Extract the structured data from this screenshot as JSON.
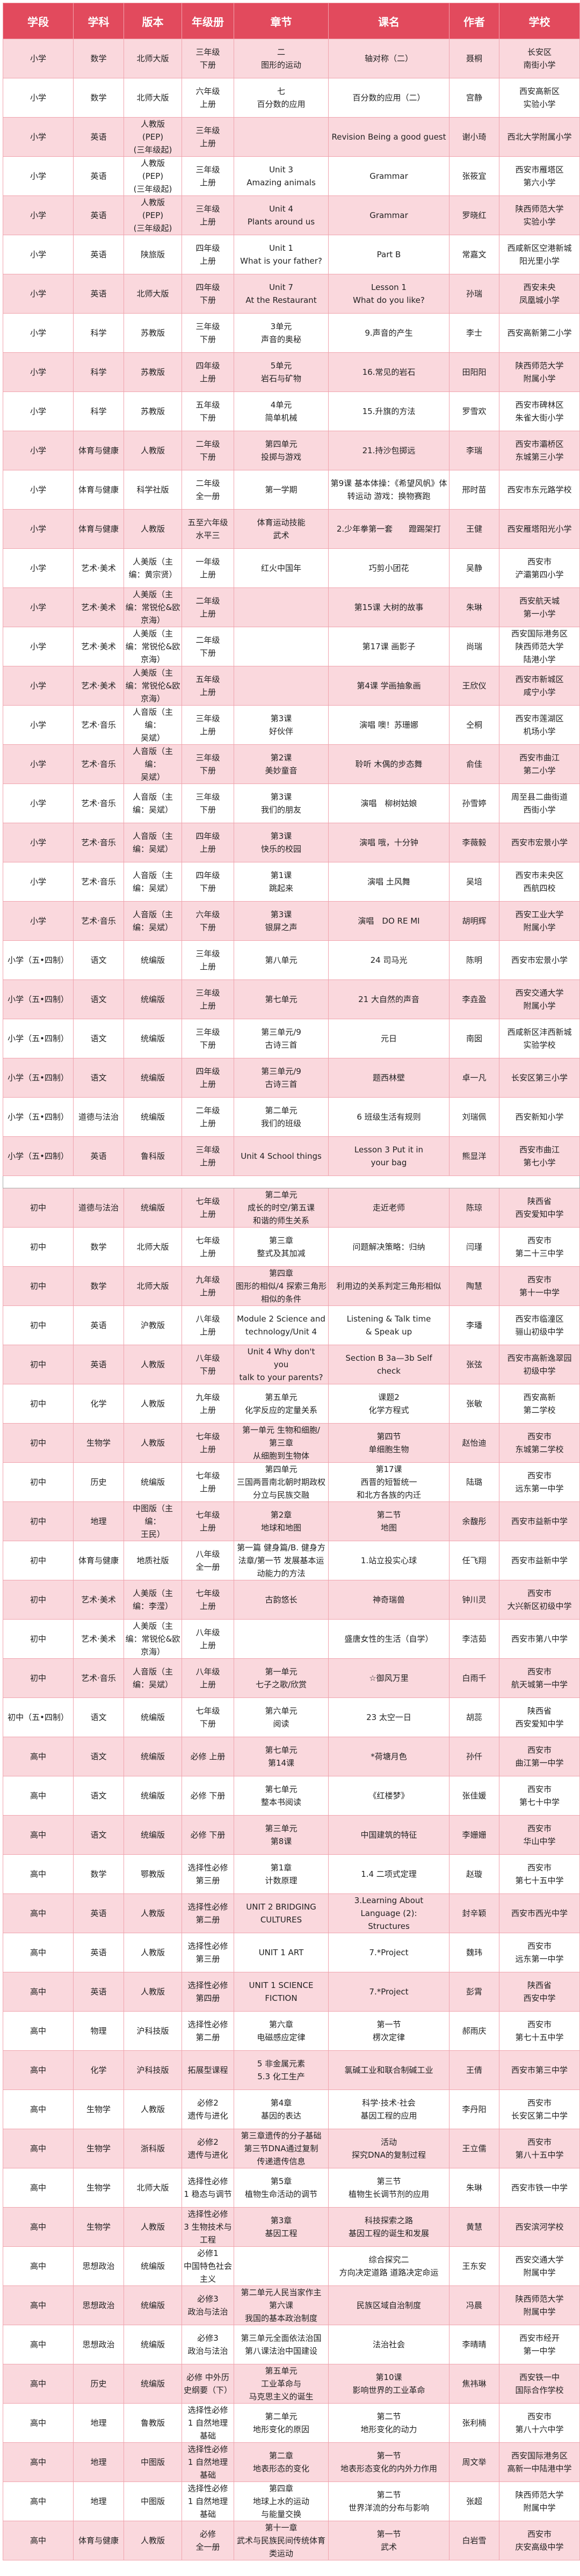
{
  "header": [
    "学段",
    "学科",
    "版本",
    "年级册",
    "章节",
    "课名",
    "作者",
    "学校"
  ],
  "colors": {
    "header": "#e24a5d",
    "pink_row": "#fad8dd",
    "border": "#f0a4ae"
  },
  "groups": [
    [
      [
        "小学",
        "数学",
        "北师大版",
        "三年级\n下册",
        "二\n图形的运动",
        "轴对称（二）",
        "聂桐",
        "长安区\n南街小学"
      ],
      [
        "小学",
        "数学",
        "北师大版",
        "六年级\n上册",
        "七\n百分数的应用",
        "百分数的应用（二）",
        "宫静",
        "西安高新区\n实验小学"
      ],
      [
        "小学",
        "英语",
        "人教版\n(PEP)\n(三年级起)",
        "三年级\n上册",
        "",
        "Revision Being a good guest",
        "谢小琦",
        "西北大学附属小学"
      ],
      [
        "小学",
        "英语",
        "人教版\n(PEP)\n(三年级起)",
        "三年级\n上册",
        "Unit 3\nAmazing animals",
        "Grammar",
        "张筱宜",
        "西安市雁塔区\n第六小学"
      ],
      [
        "小学",
        "英语",
        "人教版\n(PEP)\n(三年级起)",
        "三年级\n上册",
        "Unit 4\nPlants around us",
        "Grammar",
        "罗晓红",
        "陕西师范大学\n实验小学"
      ],
      [
        "小学",
        "英语",
        "陕旅版",
        "四年级\n上册",
        "Unit 1\nWhat is your father?",
        "Part B",
        "常嘉文",
        "西咸新区空港新城\n阳光里小学"
      ],
      [
        "小学",
        "英语",
        "北师大版",
        "四年级\n下册",
        "Unit 7\nAt the Restaurant",
        "Lesson 1\nWhat do you like?",
        "孙瑞",
        "西安未央\n凤凰城小学"
      ],
      [
        "小学",
        "科学",
        "苏教版",
        "三年级\n下册",
        "3单元\n声音的奥秘",
        "9.声音的产生",
        "李士",
        "西安高新第二小学"
      ],
      [
        "小学",
        "科学",
        "苏教版",
        "四年级\n上册",
        "5单元\n岩石与矿物",
        "16.常见的岩石",
        "田阳阳",
        "陕西师范大学\n附属小学"
      ],
      [
        "小学",
        "科学",
        "苏教版",
        "五年级\n下册",
        "4单元\n简单机械",
        "15.升旗的方法",
        "罗雪欢",
        "西安市碑林区\n朱雀大街小学"
      ],
      [
        "小学",
        "体育与健康",
        "人教版",
        "二年级\n下册",
        "第四单元\n投掷与游戏",
        "21.持沙包掷远",
        "李瑞",
        "西安市灞桥区\n东城第三小学"
      ],
      [
        "小学",
        "体育与健康",
        "科学社版",
        "二年级\n全一册",
        "第一学期",
        "第9课 基本体操：《希望风帆》体转运动 游戏：换物赛跑",
        "邢时苗",
        "西安市东元路学校"
      ],
      [
        "小学",
        "体育与健康",
        "人教版",
        "五至六年级\n水平三",
        "体育运动技能\n武术",
        "2.少年拳第一套　　蹬踢架打",
        "王健",
        "西安雁塔阳光小学"
      ],
      [
        "小学",
        "艺术·美术",
        "人美版（主编：黄宗贤）",
        "一年级\n上册",
        "红火中国年",
        "巧剪小团花",
        "吴静",
        "西安市\n浐灞第四小学"
      ],
      [
        "小学",
        "艺术·美术",
        "人美版（主编：常锐伦&欧京海）",
        "二年级\n上册",
        "",
        "第15课 大树的故事",
        "朱琳",
        "西安航天城\n第一小学"
      ],
      [
        "小学",
        "艺术·美术",
        "人美版（主编：常锐伦&欧京海）",
        "二年级\n下册",
        "",
        "第17课 画影子",
        "尚瑞",
        "西安国际港务区\n陕西师范大学\n陆港小学"
      ],
      [
        "小学",
        "艺术·美术",
        "人美版（主编：常锐伦&欧京海）",
        "五年级\n上册",
        "",
        "第4课 学画抽象画",
        "王欣仪",
        "西安市新城区\n咸宁小学"
      ],
      [
        "小学",
        "艺术·音乐",
        "人音版（主编：\n吴斌）",
        "三年级\n上册",
        "第3课\n好伙伴",
        "演唱 噢！苏珊娜",
        "仝桐",
        "西安市莲湖区\n机场小学"
      ],
      [
        "小学",
        "艺术·音乐",
        "人音版（主编：\n吴斌）",
        "三年级\n下册",
        "第2课\n美妙童音",
        "聆听 木偶的步态舞",
        "俞佳",
        "西安市曲江\n第二小学"
      ],
      [
        "小学",
        "艺术·音乐",
        "人音版（主编：吴斌）",
        "三年级\n下册",
        "第3课\n我们的朋友",
        "演唱　柳树姑娘",
        "孙雪婷",
        "周至县二曲街道\n西街小学"
      ],
      [
        "小学",
        "艺术·音乐",
        "人音版（主编：吴斌）",
        "四年级\n上册",
        "第3课\n快乐的校园",
        "演唱 哦，十分钟",
        "李薇毅",
        "西安市宏景小学"
      ],
      [
        "小学",
        "艺术·音乐",
        "人音版（主编：吴斌）",
        "四年级\n下册",
        "第1课\n跳起来",
        "演唱 土风舞",
        "吴培",
        "西安市未央区\n西航四校"
      ],
      [
        "小学",
        "艺术·音乐",
        "人音版（主编：吴斌）",
        "六年级\n下册",
        "第3课\n银屏之声",
        "演唱　DO RE MI",
        "胡明辉",
        "西安工业大学\n附属小学"
      ],
      [
        "小学（五•四制）",
        "语文",
        "统编版",
        "三年级\n上册",
        "第八单元",
        "24 司马光",
        "陈明",
        "西安市宏景小学"
      ],
      [
        "小学（五•四制）",
        "语文",
        "统编版",
        "三年级\n上册",
        "第七单元",
        "21 大自然的声音",
        "李垚盈",
        "西安交通大学\n附属小学"
      ],
      [
        "小学（五•四制）",
        "语文",
        "统编版",
        "三年级\n下册",
        "第三单元/9\n古诗三首",
        "元日",
        "南囡",
        "西咸新区沣西新城\n实验学校"
      ],
      [
        "小学（五•四制）",
        "语文",
        "统编版",
        "四年级\n上册",
        "第三单元/9\n古诗三首",
        "题西林壁",
        "卓一凡",
        "长安区第三小学"
      ],
      [
        "小学（五•四制）",
        "道德与法治",
        "统编版",
        "二年级\n上册",
        "第二单元\n我们的班级",
        "6 班级生活有规则",
        "刘瑞佩",
        "西安新知小学"
      ],
      [
        "小学（五•四制）",
        "英语",
        "鲁科版",
        "三年级\n上册",
        "Unit 4 School things",
        "Lesson 3 Put it in\nyour bag",
        "熊显洋",
        "西安市曲江\n第七小学"
      ]
    ],
    [
      [
        "初中",
        "道德与法治",
        "统编版",
        "七年级\n上册",
        "第二单元\n成长的时空/第五课\n和谐的师生关系",
        "走近老师",
        "陈琼",
        "陕西省\n西安爱知中学"
      ],
      [
        "初中",
        "数学",
        "北师大版",
        "七年级\n上册",
        "第三章\n整式及其加减",
        "问题解决策略：归纳",
        "闫瑾",
        "西安市\n第二十三中学"
      ],
      [
        "初中",
        "数学",
        "北师大版",
        "九年级\n上册",
        "第四章\n图形的相似/4 探索三角形相似的条件",
        "利用边的关系判定三角形相似",
        "陶慧",
        "西安市\n第十一中学"
      ],
      [
        "初中",
        "英语",
        "沪教版",
        "八年级\n上册",
        "Module 2 Science and\ntechnology/Unit 4",
        "Listening & Talk time\n& Speak up",
        "李璠",
        "西安市临潼区\n骊山初级中学"
      ],
      [
        "初中",
        "英语",
        "人教版",
        "八年级\n下册",
        "Unit 4 Why don't\nyou\ntalk to your parents?",
        "Section B 3a—3b Self\ncheck",
        "张弦",
        "西安市高新逸翠园\n初级中学"
      ],
      [
        "初中",
        "化学",
        "人教版",
        "九年级\n上册",
        "第五单元\n化学反应的定量关系",
        "课题2\n化学方程式",
        "张敏",
        "西安高新\n第二学校"
      ],
      [
        "初中",
        "生物学",
        "人教版",
        "七年级\n上册",
        "第一单元 生物和细胞/\n第三章\n从细胞到生物体",
        "第四节\n单细胞生物",
        "赵怡迪",
        "西安市\n东城第二学校"
      ],
      [
        "初中",
        "历史",
        "统编版",
        "七年级\n上册",
        "第四单元\n三国两晋南北朝时期政权分立与民族交融",
        "第17课\n西晋的短暂统一\n和北方各族的内迁",
        "陆璐",
        "西安市\n远东第一中学"
      ],
      [
        "初中",
        "地理",
        "中图版（主编：\n王民）",
        "七年级\n上册",
        "第2章\n地球和地图",
        "第二节\n地图",
        "余馥彤",
        "西安市益新中学"
      ],
      [
        "初中",
        "体育与健康",
        "地质社版",
        "八年级\n全一册",
        "第一篇 健身篇/B. 健身方法章/第一节 发展基本运动能力的方法",
        "1.站立投实心球",
        "任飞翔",
        "西安市益新中学"
      ],
      [
        "初中",
        "艺术·美术",
        "人美版（主编：李滢）",
        "七年级\n上册",
        "古韵悠长",
        "神奇瑞兽",
        "钟川灵",
        "西安市\n大兴新区初级中学"
      ],
      [
        "初中",
        "艺术·美术",
        "人美版（主编：常锐伦&欧京海）",
        "八年级\n上册",
        "",
        "盛唐女性的生活（自学）",
        "李洁茹",
        "西安市第八中学"
      ],
      [
        "初中",
        "艺术·音乐",
        "人音版（主编：吴斌）",
        "八年级\n上册",
        "第一单元\n七子之歌/欣赏",
        "☆御风万里",
        "白雨千",
        "西安市\n航天城第一中学"
      ],
      [
        "初中（五•四制）",
        "语文",
        "统编版",
        "七年级\n下册",
        "第六单元\n阅读",
        "23 太空一日",
        "胡蕊",
        "陕西省\n西安爱知中学"
      ],
      [
        "高中",
        "语文",
        "统编版",
        "必修 上册",
        "第七单元\n第14课",
        "*荷塘月色",
        "孙仟",
        "西安市\n曲江第一中学"
      ],
      [
        "高中",
        "语文",
        "统编版",
        "必修 下册",
        "第七单元\n整本书阅读",
        "《红楼梦》",
        "张佳媛",
        "西安市\n第七十中学"
      ],
      [
        "高中",
        "语文",
        "统编版",
        "必修 下册",
        "第三单元\n第8课",
        "中国建筑的特征",
        "李姗姗",
        "西安市\n华山中学"
      ],
      [
        "高中",
        "数学",
        "鄂教版",
        "选择性必修\n第三册",
        "第1章\n计数原理",
        "1.4 二项式定理",
        "赵璇",
        "西安市\n第七十五中学"
      ],
      [
        "高中",
        "英语",
        "人教版",
        "选择性必修\n第二册",
        "UNIT 2 BRIDGING\nCULTURES",
        "3.Learning About\nLanguage (2):\nStructures",
        "封辛颖",
        "西安市西光中学"
      ],
      [
        "高中",
        "英语",
        "人教版",
        "选择性必修\n第三册",
        "UNIT 1 ART",
        "7.*Project",
        "魏玮",
        "西安市\n远东第一中学"
      ],
      [
        "高中",
        "英语",
        "人教版",
        "选择性必修\n第四册",
        "UNIT 1 SCIENCE\nFICTION",
        "7.*Project",
        "彭霄",
        "陕西省\n西安中学"
      ],
      [
        "高中",
        "物理",
        "沪科技版",
        "选择性必修\n第二册",
        "第六章\n电磁感应定律",
        "第一节\n楞次定律",
        "郝雨庆",
        "西安市\n第七十五中学"
      ],
      [
        "高中",
        "化学",
        "沪科技版",
        "拓展型课程",
        "5 非金属元素\n5.3 化工生产",
        "氯碱工业和联合制碱工业",
        "王倩",
        "西安市第三中学"
      ],
      [
        "高中",
        "生物学",
        "人教版",
        "必修2\n遗传与进化",
        "第4章\n基因的表达",
        "科学·技术·社会\n基因工程的应用",
        "李丹阳",
        "西安市\n长安区第二中学"
      ],
      [
        "高中",
        "生物学",
        "浙科版",
        "必修2\n遗传与进化",
        "第三章遗传的分子基础\n第三节DNA通过复制\n传递遗传信息",
        "活动\n探究DNA的复制过程",
        "王立儒",
        "西安市\n第八十五中学"
      ],
      [
        "高中",
        "生物学",
        "北师大版",
        "选择性必修\n1 稳态与调节",
        "第5章\n植物生命活动的调节",
        "第三节\n植物生长调节剂的应用",
        "朱琳",
        "西安市铁一中学"
      ],
      [
        "高中",
        "生物学",
        "人教版",
        "选择性必修\n3 生物技术与工程",
        "第3章\n基因工程",
        "科技探索之路\n基因工程的诞生和发展",
        "黄慧",
        "西安滨河学校"
      ],
      [
        "高中",
        "思想政治",
        "统编版",
        "必修1\n中国特色社会主义",
        "",
        "综合探究二\n方向决定道路 道路决定命运",
        "王东安",
        "西安交通大学\n附属中学"
      ],
      [
        "高中",
        "思想政治",
        "统编版",
        "必修3\n政治与法治",
        "第二单元人民当家作主\n第六课\n我国的基本政治制度",
        "民族区域自治制度",
        "冯晨",
        "陕西师范大学\n附属中学"
      ],
      [
        "高中",
        "思想政治",
        "统编版",
        "必修3\n政治与法治",
        "第三单元全面依法治国\n第八课法治中国建设",
        "法治社会",
        "李晴晴",
        "西安市经开\n第一中学"
      ],
      [
        "高中",
        "历史",
        "统编版",
        "必修 中外历史纲要（下）",
        "第五单元\n工业革命与\n马克思主义的诞生",
        "第10课\n影响世界的工业革命",
        "焦祎琳",
        "西安铁一中\n国际合作学校"
      ],
      [
        "高中",
        "地理",
        "鲁教版",
        "选择性必修\n1 自然地理\n基础",
        "第二单元\n地形变化的原因",
        "第二节\n地形变化的动力",
        "张利楠",
        "西安市\n第八十六中学"
      ],
      [
        "高中",
        "地理",
        "中图版",
        "选择性必修\n1 自然地理\n基础",
        "第二章\n地表形态的变化",
        "第一节\n地表形态变化的内外力作用",
        "周文举",
        "西安国际港务区\n高新一中陆港中学"
      ],
      [
        "高中",
        "地理",
        "中图版",
        "选择性必修\n1 自然地理\n基础",
        "第四章\n地球上水的运动\n与能量交换",
        "第二节\n世界洋流的分布与影响",
        "张超",
        "陕西师范大学\n附属中学"
      ],
      [
        "高中",
        "体育与健康",
        "人教版",
        "必修\n全一册",
        "第十一章\n武术与民族民间传统体育类运动",
        "第一节\n武术",
        "白岩雪",
        "西安市\n庆安高级中学"
      ]
    ]
  ]
}
